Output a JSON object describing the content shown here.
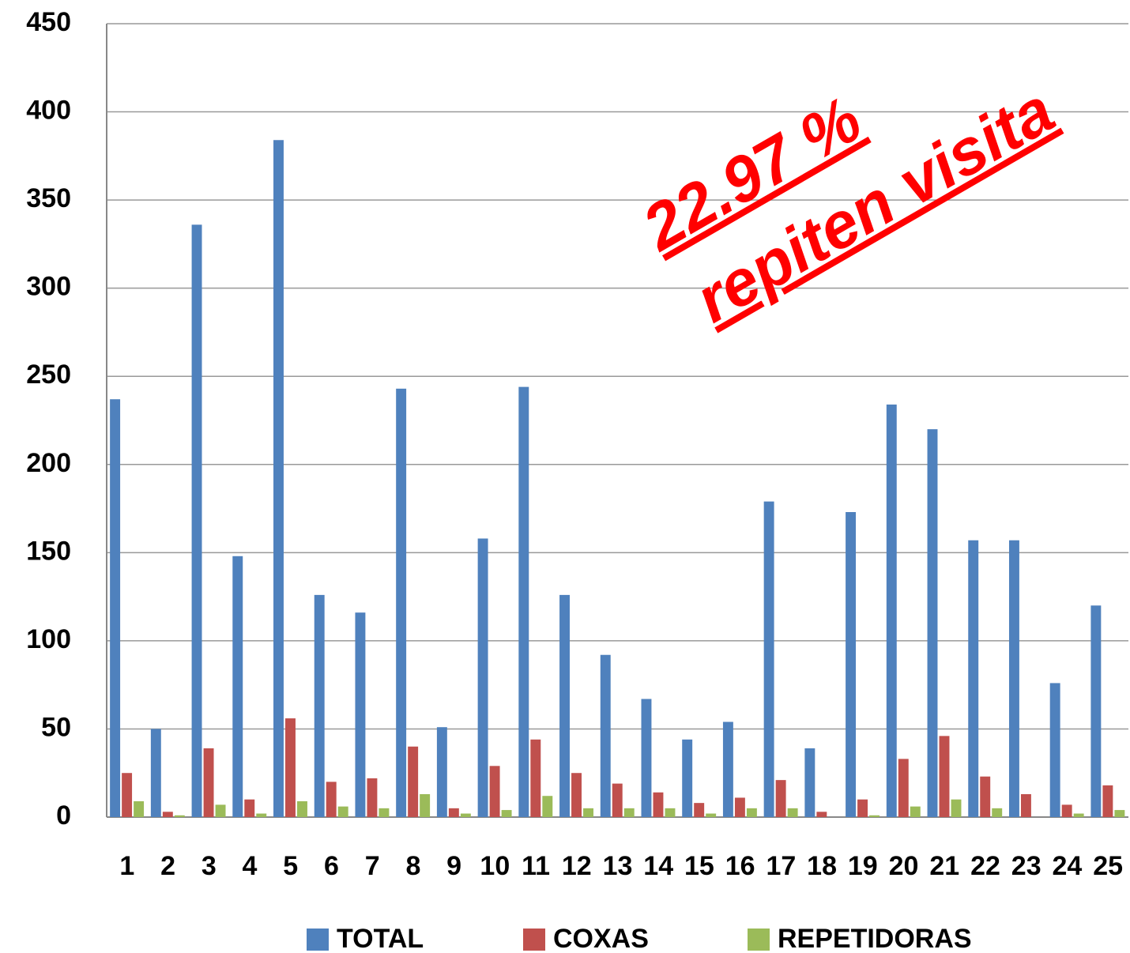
{
  "chart_data": {
    "type": "bar",
    "categories": [
      "1",
      "2",
      "3",
      "4",
      "5",
      "6",
      "7",
      "8",
      "9",
      "10",
      "11",
      "12",
      "13",
      "14",
      "15",
      "16",
      "17",
      "18",
      "19",
      "20",
      "21",
      "22",
      "23",
      "24",
      "25"
    ],
    "series": [
      {
        "name": "TOTAL",
        "color": "#4f81bd",
        "values": [
          237,
          50,
          336,
          148,
          384,
          126,
          116,
          243,
          51,
          158,
          244,
          126,
          92,
          67,
          44,
          54,
          179,
          39,
          173,
          234,
          220,
          157,
          157,
          76,
          120
        ]
      },
      {
        "name": "COXAS",
        "color": "#c0504d",
        "values": [
          25,
          3,
          39,
          10,
          56,
          20,
          22,
          40,
          5,
          29,
          44,
          25,
          19,
          14,
          8,
          11,
          21,
          3,
          10,
          33,
          46,
          23,
          13,
          7,
          18
        ]
      },
      {
        "name": "REPETIDORAS",
        "color": "#9bbb59",
        "values": [
          9,
          1,
          7,
          2,
          9,
          6,
          5,
          13,
          2,
          4,
          12,
          5,
          5,
          5,
          2,
          5,
          5,
          0,
          1,
          6,
          10,
          5,
          0,
          2,
          4
        ]
      }
    ],
    "ylim": [
      0,
      450
    ],
    "yticks": [
      0,
      50,
      100,
      150,
      200,
      250,
      300,
      350,
      400,
      450
    ],
    "grid": true,
    "legend": "bottom",
    "annotations": [
      "22.97 %",
      "repiten visita"
    ],
    "annotation_color": "#ff0000"
  }
}
